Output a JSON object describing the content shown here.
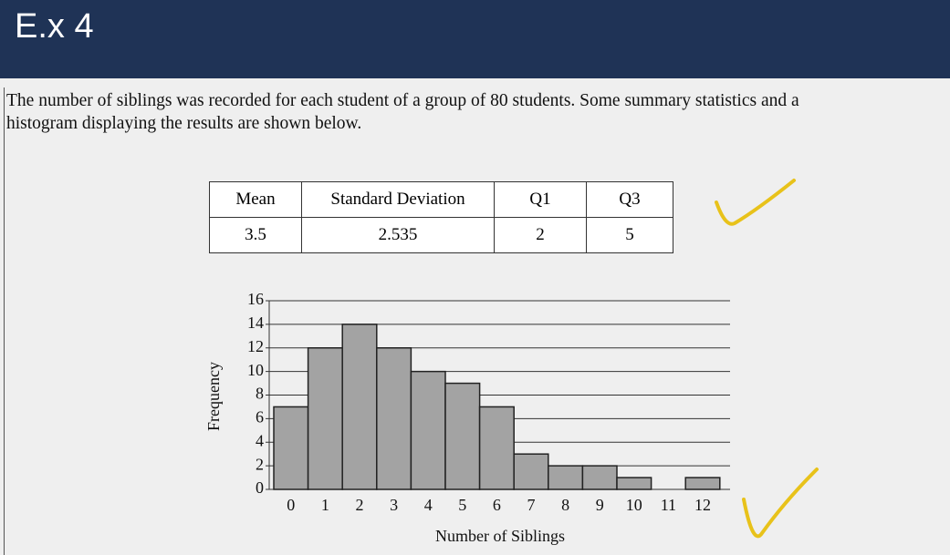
{
  "header": {
    "title": "E.x 4"
  },
  "text": {
    "lines": [
      "The number of siblings was recorded for each student of a group of 80 students. Some summary statistics and a",
      "histogram displaying the results are shown below."
    ]
  },
  "table": {
    "header": [
      "Mean",
      "Standard Deviation",
      "Q1",
      "Q3"
    ],
    "rows": [
      [
        "3.5",
        "2.535",
        "2",
        "5"
      ]
    ]
  },
  "chart_data": {
    "type": "bar",
    "xlabel": "Number of Siblings",
    "ylabel": "Frequency",
    "categories": [
      0,
      1,
      2,
      3,
      4,
      5,
      6,
      7,
      8,
      9,
      10,
      11,
      12
    ],
    "values": [
      7,
      12,
      14,
      12,
      10,
      9,
      7,
      3,
      2,
      2,
      1,
      0,
      1
    ],
    "color": "#a3a3a3",
    "ylim": [
      0,
      16
    ],
    "yticks": [
      0,
      2,
      4,
      6,
      8,
      10,
      12,
      14,
      16
    ],
    "grid": true
  }
}
